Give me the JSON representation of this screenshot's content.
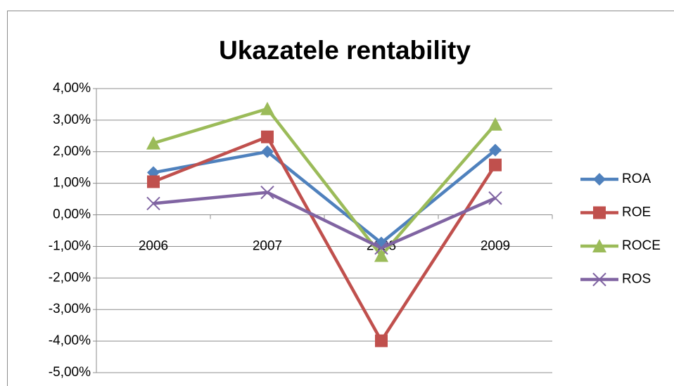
{
  "chart_data": {
    "type": "line",
    "title": "Ukazatele rentability",
    "categories": [
      "2006",
      "2007",
      "2008",
      "2009"
    ],
    "series": [
      {
        "name": "ROA",
        "color": "#4f81bd",
        "marker": "diamond",
        "values": [
          1.34,
          2.0,
          -0.89,
          2.05
        ]
      },
      {
        "name": "ROE",
        "color": "#c0504d",
        "marker": "square",
        "values": [
          1.05,
          2.47,
          -3.99,
          1.58
        ]
      },
      {
        "name": "ROCE",
        "color": "#9bbb59",
        "marker": "triangle",
        "values": [
          2.27,
          3.36,
          -1.29,
          2.87
        ]
      },
      {
        "name": "ROS",
        "color": "#8064a2",
        "marker": "x",
        "values": [
          0.36,
          0.71,
          -1.05,
          0.53
        ]
      }
    ],
    "ylim": [
      -5,
      4
    ],
    "yticks": [
      {
        "value": 4,
        "label": "4,00%"
      },
      {
        "value": 3,
        "label": "3,00%"
      },
      {
        "value": 2,
        "label": "2,00%"
      },
      {
        "value": 1,
        "label": "1,00%"
      },
      {
        "value": 0,
        "label": "0,00%"
      },
      {
        "value": -1,
        "label": "-1,00%"
      },
      {
        "value": -2,
        "label": "-2,00%"
      },
      {
        "value": -3,
        "label": "-3,00%"
      },
      {
        "value": -4,
        "label": "-4,00%"
      },
      {
        "value": -5,
        "label": "-5,00%"
      }
    ],
    "grid": true,
    "legend": "right"
  }
}
